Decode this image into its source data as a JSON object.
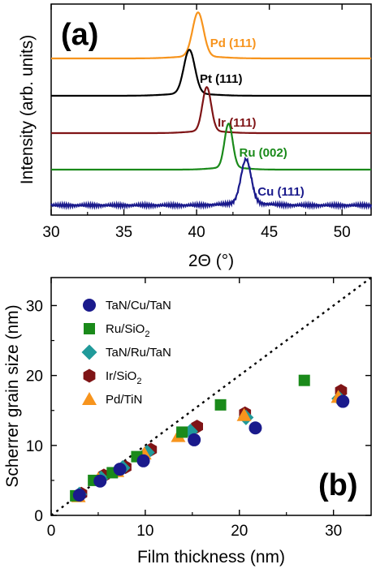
{
  "chart_data": [
    {
      "panel": "(a)",
      "type": "line",
      "xlabel": "2Θ (°)",
      "ylabel": "Intensity (arb. units)",
      "xlim": [
        30,
        52
      ],
      "xticks": [
        30,
        35,
        40,
        45,
        50
      ],
      "y_ticks_labeled": false,
      "grid": false,
      "series": [
        {
          "name": "Pd (111)",
          "color": "#f7941d",
          "peak": 40.1,
          "width": 0.38,
          "amplitude": 1.0,
          "noise": false
        },
        {
          "name": "Pt (111)",
          "color": "#000000",
          "peak": 39.5,
          "width": 0.38,
          "amplitude": 1.0,
          "noise": false
        },
        {
          "name": "Ir (111)",
          "color": "#7f1416",
          "peak": 40.7,
          "width": 0.3,
          "amplitude": 1.0,
          "noise": false
        },
        {
          "name": "Ru (002)",
          "color": "#1a8a1a",
          "peak": 42.2,
          "width": 0.28,
          "amplitude": 1.0,
          "noise": false
        },
        {
          "name": "Cu (111)",
          "color": "#1a1a8c",
          "peak": 43.4,
          "width": 0.35,
          "amplitude": 1.0,
          "noise": true
        }
      ]
    },
    {
      "panel": "(b)",
      "type": "scatter",
      "xlabel": "Film thickness (nm)",
      "ylabel": "Scherrer grain size (nm)",
      "xlim": [
        0,
        34
      ],
      "ylim": [
        0,
        34
      ],
      "xticks": [
        0,
        10,
        20,
        30
      ],
      "yticks": [
        0,
        10,
        20,
        30
      ],
      "legend_position": "top-left",
      "reference_line": "y = x (dotted)",
      "series": [
        {
          "name": "TaN/Cu/TaN",
          "name_main": "TaN/Cu/TaN",
          "name_sub": "",
          "marker": "circle",
          "color": "#1a1a8c",
          "points": [
            [
              3.0,
              2.9
            ],
            [
              5.2,
              4.9
            ],
            [
              7.3,
              6.6
            ],
            [
              9.8,
              7.8
            ],
            [
              15.2,
              10.8
            ],
            [
              21.7,
              12.5
            ],
            [
              31.0,
              16.3
            ]
          ]
        },
        {
          "name": "Ru/SiO2",
          "name_main": "Ru/SiO",
          "name_sub": "2",
          "marker": "square",
          "color": "#1a8a1a",
          "points": [
            [
              2.6,
              2.8
            ],
            [
              4.5,
              5.0
            ],
            [
              6.5,
              6.1
            ],
            [
              9.1,
              8.4
            ],
            [
              13.9,
              11.9
            ],
            [
              18.0,
              15.8
            ],
            [
              26.9,
              19.3
            ]
          ]
        },
        {
          "name": "TaN/Ru/TaN",
          "name_main": "TaN/Ru/TaN",
          "name_sub": "",
          "marker": "diamond",
          "color": "#209a9a",
          "points": [
            [
              3.0,
              3.0
            ],
            [
              5.3,
              5.3
            ],
            [
              7.6,
              6.8
            ],
            [
              10.2,
              9.0
            ],
            [
              14.8,
              12.0
            ],
            [
              20.7,
              14.0
            ],
            [
              30.6,
              16.7
            ]
          ]
        },
        {
          "name": "Ir/SiO2",
          "name_main": "Ir/SiO",
          "name_sub": "2",
          "marker": "hexagon",
          "color": "#7f1416",
          "points": [
            [
              3.2,
              3.1
            ],
            [
              5.6,
              5.7
            ],
            [
              7.9,
              6.9
            ],
            [
              10.6,
              9.4
            ],
            [
              15.5,
              12.7
            ],
            [
              20.6,
              14.6
            ],
            [
              30.8,
              17.8
            ]
          ]
        },
        {
          "name": "Pd/TiN",
          "name_main": "Pd/TiN",
          "name_sub": "",
          "marker": "triangle",
          "color": "#f7941d",
          "points": [
            [
              2.9,
              2.7
            ],
            [
              5.0,
              5.2
            ],
            [
              7.0,
              6.3
            ],
            [
              9.9,
              8.8
            ],
            [
              13.5,
              11.3
            ],
            [
              20.5,
              14.3
            ],
            [
              30.5,
              16.9
            ]
          ]
        }
      ]
    }
  ]
}
